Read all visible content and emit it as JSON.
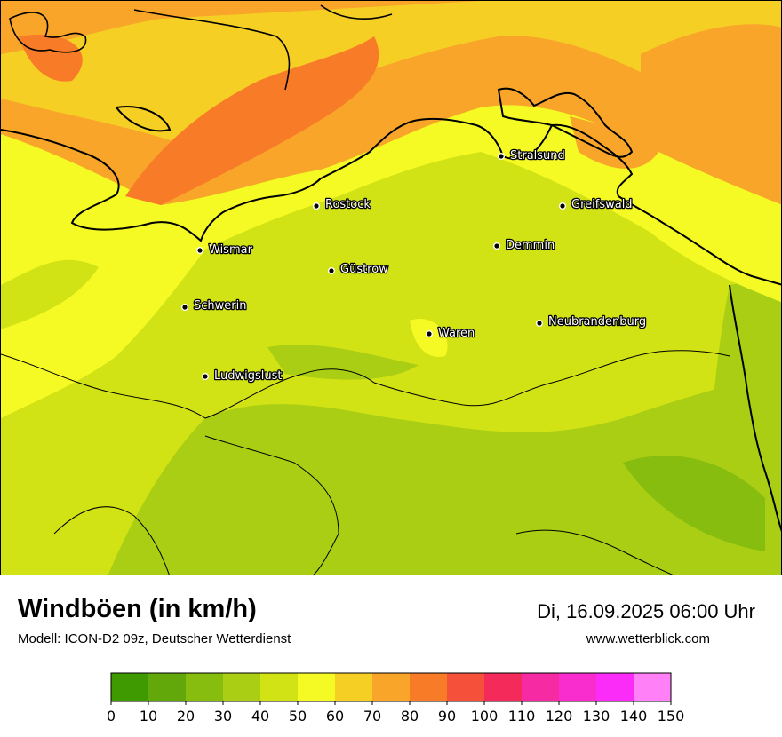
{
  "header": {
    "title": "Windböen (in km/h)",
    "subtitle": "Modell: ICON-D2 09z, Deutscher Wetterdienst",
    "datetime": "Di, 16.09.2025 06:00 Uhr",
    "website": "www.wetterblick.com"
  },
  "cities": [
    {
      "name": "Stralsund"
    },
    {
      "name": "Rostock"
    },
    {
      "name": "Greifswald"
    },
    {
      "name": "Wismar"
    },
    {
      "name": "Demmin"
    },
    {
      "name": "Güstrow"
    },
    {
      "name": "Schwerin"
    },
    {
      "name": "Neubrandenburg"
    },
    {
      "name": "Waren"
    },
    {
      "name": "Ludwigslust"
    }
  ],
  "legend": {
    "unit": "km/h",
    "ticks": [
      "0",
      "10",
      "20",
      "30",
      "40",
      "50",
      "60",
      "70",
      "80",
      "90",
      "100",
      "110",
      "120",
      "130",
      "140",
      "150"
    ],
    "colors": [
      "#3f9a01",
      "#62a80b",
      "#86bd0f",
      "#a9ce14",
      "#d1e314",
      "#f5fa25",
      "#f6cf24",
      "#f8a52a",
      "#f87b27",
      "#f5503a",
      "#f42a5a",
      "#f62aa3",
      "#f92ccd",
      "#fb2cf7",
      "#ff80f7"
    ]
  }
}
